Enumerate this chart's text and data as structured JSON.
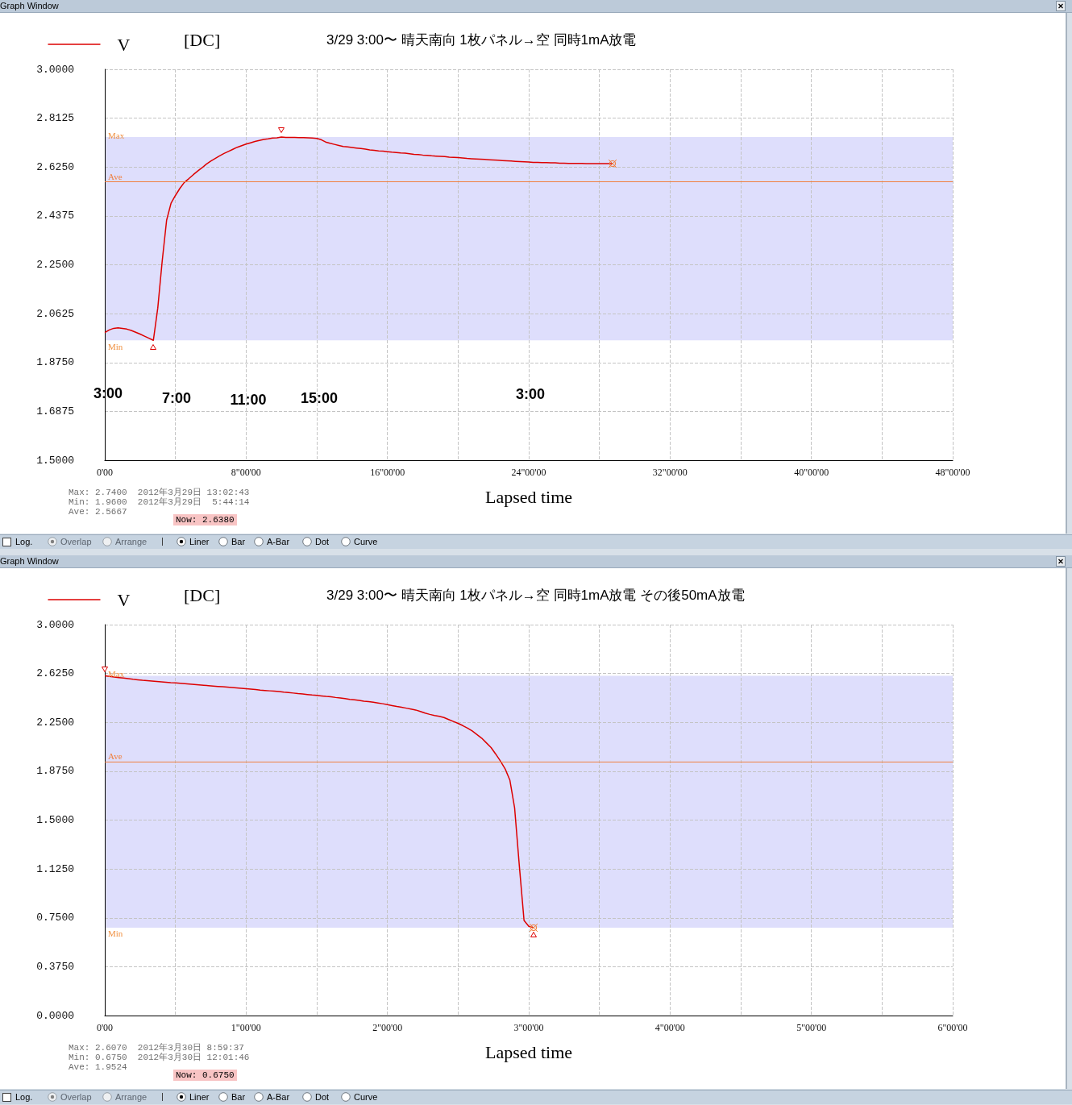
{
  "chart_data": [
    {
      "type": "line",
      "title": "3/29 3:00〜 晴天南向 1枚パネル→空 同時1mA放電",
      "xlabel": "Lapsed time",
      "categories": [
        "0'00",
        null,
        null,
        null,
        null,
        null,
        null,
        null,
        null,
        null,
        null,
        null,
        null,
        null,
        null,
        null,
        null,
        null,
        null,
        null,
        null,
        null,
        null,
        null,
        null,
        null,
        null,
        null,
        null,
        null,
        null,
        null,
        "8\"00'00",
        null,
        null,
        null,
        null,
        null,
        null,
        null,
        null,
        null,
        null,
        null,
        null,
        null,
        null,
        null,
        null,
        null,
        null,
        null,
        null,
        null,
        null,
        null,
        null,
        null,
        null,
        null,
        null,
        null,
        null,
        null,
        "16\"00'00",
        null,
        null,
        null,
        null,
        null,
        null,
        null,
        null,
        null,
        null,
        null,
        null,
        null,
        null,
        null,
        null,
        null,
        null,
        null,
        null,
        null,
        null,
        null,
        null,
        null,
        null,
        null,
        null,
        null,
        null,
        null,
        "24\"00'00",
        null,
        null,
        null,
        null,
        null,
        null,
        null,
        null,
        null,
        null,
        null,
        null,
        null,
        null,
        null,
        null,
        null,
        null,
        null,
        null,
        null,
        null,
        null,
        null,
        null,
        null,
        null,
        null,
        null,
        null,
        null,
        "32\"00'00",
        null,
        null,
        null,
        null,
        null,
        null,
        null,
        null,
        null,
        null,
        null,
        null,
        null,
        null,
        null,
        null,
        null,
        null,
        null,
        null,
        null,
        null,
        null,
        null,
        null,
        null,
        null,
        null,
        null,
        null,
        null,
        "40\"00'00",
        null,
        null,
        null,
        null,
        null,
        null,
        null,
        null,
        null,
        null,
        null,
        null,
        null,
        null,
        null,
        null,
        null,
        null,
        null,
        null,
        null,
        null,
        null,
        null,
        null,
        null,
        null,
        null,
        null,
        null,
        null,
        "48\"00'00"
      ],
      "series": [
        {
          "name": "V",
          "color": "#dd0000",
          "values": [
            1.99,
            2.0,
            2.006,
            2.008,
            2.006,
            2.003,
            1.998,
            1.991,
            1.984,
            1.976,
            1.968,
            1.96,
            2.084,
            2.264,
            2.421,
            2.486,
            2.516,
            2.543,
            2.566,
            2.58,
            2.595,
            2.609,
            2.622,
            2.636,
            2.648,
            2.658,
            2.668,
            2.677,
            2.685,
            2.693,
            2.701,
            2.707,
            2.713,
            2.718,
            2.723,
            2.727,
            2.731,
            2.733,
            2.736,
            2.737,
            2.74,
            2.739,
            2.739,
            2.739,
            2.738,
            2.738,
            2.737,
            2.736,
            2.735,
            2.73,
            2.721,
            2.716,
            2.712,
            2.708,
            2.704,
            2.702,
            2.7,
            2.698,
            2.696,
            2.694,
            2.691,
            2.689,
            2.687,
            2.686,
            2.684,
            2.682,
            2.681,
            2.679,
            2.678,
            2.676,
            2.674,
            2.673,
            2.671,
            2.67,
            2.668,
            2.667,
            2.666,
            2.665,
            2.663,
            2.662,
            2.661,
            2.66,
            2.658,
            2.657,
            2.656,
            2.655,
            2.654,
            2.653,
            2.652,
            2.651,
            2.65,
            2.649,
            2.648,
            2.647,
            2.646,
            2.645,
            2.644,
            2.643,
            2.643,
            2.642,
            2.642,
            2.641,
            2.641,
            2.64,
            2.64,
            2.639,
            2.639,
            2.639,
            2.639,
            2.638,
            2.638,
            2.638,
            2.638,
            2.638,
            2.638,
            2.638,
            null,
            null,
            null,
            null,
            null,
            null,
            null,
            null,
            null,
            null,
            null,
            null,
            null,
            null,
            null,
            null,
            null,
            null,
            null,
            null,
            null,
            null,
            null,
            null,
            null,
            null,
            null,
            null,
            null,
            null,
            null,
            null,
            null,
            null,
            null,
            null,
            null,
            null,
            null,
            null,
            null,
            null,
            null,
            null,
            null,
            null,
            null,
            null,
            null,
            null,
            null,
            null,
            null,
            null,
            null,
            null,
            null,
            null,
            null,
            null,
            null,
            null,
            null,
            null,
            null,
            null,
            null,
            null,
            null,
            null,
            null,
            null,
            null,
            null,
            null,
            null,
            null
          ]
        }
      ],
      "ylim": [
        1.5,
        3.0
      ],
      "yticks": [
        {
          "value": 1.5,
          "label": "1.5000"
        },
        1.6875,
        {
          "value": 1.875,
          "label": "1.8750"
        },
        2.0625,
        {
          "value": 2.25,
          "label": "2.2500"
        },
        2.4375,
        {
          "value": 2.625,
          "label": "2.6250"
        },
        2.8125,
        {
          "value": 3.0,
          "label": "3.0000"
        }
      ],
      "grid": true,
      "legend": "top left",
      "bands": [
        {
          "axis": "y",
          "from": 1.96,
          "to": 2.74,
          "color": "#dedefc"
        }
      ],
      "ref_lines": [
        {
          "axis": "y",
          "value": 2.5667,
          "label": "Ave",
          "color": "#f08040"
        }
      ],
      "annotations": [
        "Graph Window",
        "[DC]",
        "Max: 2.7400  2012年3月29日 13:02:43",
        "Min: 1.9600  2012年3月29日  5:44:14",
        "Ave: 2.5667",
        "Now: 2.6380",
        "Log.",
        "Overlap",
        "Arrange",
        "Liner",
        "Bar",
        "A-Bar",
        "Dot",
        "Curve",
        {
          "text": "Max",
          "y": 2.74
        },
        {
          "text": "Min",
          "y": 1.96
        },
        "3:00",
        "7:00",
        "11:00",
        "15:00",
        "3:00"
      ]
    },
    {
      "type": "line",
      "title": "3/29 3:00〜 晴天南向 1枚パネル→空 同時1mA放電 その後50mA放電",
      "xlabel": "Lapsed time",
      "categories": [
        "0'00",
        null,
        null,
        null,
        null,
        null,
        null,
        null,
        null,
        null,
        null,
        null,
        null,
        null,
        null,
        null,
        null,
        null,
        null,
        null,
        null,
        null,
        null,
        null,
        null,
        null,
        null,
        null,
        null,
        null,
        "1\"00'00",
        null,
        null,
        null,
        null,
        null,
        null,
        null,
        null,
        null,
        null,
        null,
        null,
        null,
        null,
        null,
        null,
        null,
        null,
        null,
        null,
        null,
        null,
        null,
        null,
        null,
        null,
        null,
        null,
        null,
        "2\"00'00",
        null,
        null,
        null,
        null,
        null,
        null,
        null,
        null,
        null,
        null,
        null,
        null,
        null,
        null,
        null,
        null,
        null,
        null,
        null,
        null,
        null,
        null,
        null,
        null,
        null,
        null,
        null,
        null,
        null,
        "3\"00'00",
        null,
        null,
        null,
        null,
        null,
        null,
        null,
        null,
        null,
        null,
        null,
        null,
        null,
        null,
        null,
        null,
        null,
        null,
        null,
        null,
        null,
        null,
        null,
        null,
        null,
        null,
        null,
        null,
        null,
        "4\"00'00",
        null,
        null,
        null,
        null,
        null,
        null,
        null,
        null,
        null,
        null,
        null,
        null,
        null,
        null,
        null,
        null,
        null,
        null,
        null,
        null,
        null,
        null,
        null,
        null,
        null,
        null,
        null,
        null,
        null,
        "5\"00'00",
        null,
        null,
        null,
        null,
        null,
        null,
        null,
        null,
        null,
        null,
        null,
        null,
        null,
        null,
        null,
        null,
        null,
        null,
        null,
        null,
        null,
        null,
        null,
        null,
        null,
        null,
        null,
        null,
        null,
        "6\"00'00"
      ],
      "series": [
        {
          "name": "V",
          "color": "#dd0000",
          "values": [
            2.607,
            2.603,
            2.598,
            2.594,
            2.59,
            2.586,
            2.581,
            2.577,
            2.573,
            2.57,
            2.567,
            2.564,
            2.561,
            2.558,
            2.555,
            2.553,
            2.55,
            2.547,
            2.544,
            2.541,
            2.538,
            2.535,
            2.532,
            2.529,
            2.526,
            2.523,
            2.52,
            2.517,
            2.514,
            2.511,
            2.508,
            2.505,
            2.502,
            2.498,
            2.495,
            2.492,
            2.489,
            2.486,
            2.482,
            2.479,
            2.475,
            2.471,
            2.468,
            2.464,
            2.46,
            2.457,
            2.453,
            2.449,
            2.446,
            2.441,
            2.437,
            2.432,
            2.427,
            2.423,
            2.418,
            2.413,
            2.409,
            2.404,
            2.399,
            2.393,
            2.386,
            2.379,
            2.372,
            2.366,
            2.359,
            2.352,
            2.345,
            2.334,
            2.321,
            2.311,
            2.303,
            2.296,
            2.287,
            2.272,
            2.257,
            2.242,
            2.225,
            2.206,
            2.184,
            2.157,
            2.129,
            2.093,
            2.057,
            2.006,
            1.952,
            1.892,
            1.806,
            1.594,
            1.15,
            0.73,
            0.685,
            0.675,
            null,
            null,
            null,
            null,
            null,
            null,
            null,
            null,
            null,
            null,
            null,
            null,
            null,
            null,
            null,
            null,
            null,
            null,
            null,
            null,
            null,
            null,
            null,
            null,
            null,
            null,
            null,
            null,
            null,
            null,
            null,
            null,
            null,
            null,
            null,
            null,
            null,
            null,
            null,
            null,
            null,
            null,
            null,
            null,
            null,
            null,
            null,
            null,
            null,
            null,
            null,
            null,
            null,
            null,
            null,
            null,
            null,
            null,
            null,
            null,
            null,
            null,
            null,
            null,
            null,
            null,
            null,
            null,
            null,
            null,
            null,
            null,
            null,
            null,
            null,
            null,
            null,
            null,
            null,
            null,
            null,
            null,
            null,
            null,
            null,
            null,
            null,
            null,
            null
          ]
        }
      ],
      "ylim": [
        0,
        3.0
      ],
      "yticks": [
        {
          "value": 0,
          "label": "0.0000"
        },
        {
          "value": 0.375,
          "label": "0.3750"
        },
        {
          "value": 0.75,
          "label": "0.7500"
        },
        {
          "value": 1.125,
          "label": "1.1250"
        },
        {
          "value": 1.5,
          "label": "1.5000"
        },
        {
          "value": 1.875,
          "label": "1.8750"
        },
        {
          "value": 2.25,
          "label": "2.2500"
        },
        {
          "value": 2.625,
          "label": "2.6250"
        },
        {
          "value": 3.0,
          "label": "3.0000"
        }
      ],
      "grid": true,
      "legend": "top left",
      "bands": [
        {
          "axis": "y",
          "from": 0.675,
          "to": 2.607,
          "color": "#dedefc"
        }
      ],
      "ref_lines": [
        {
          "axis": "y",
          "value": 1.9524,
          "label": "Ave",
          "color": "#f08040"
        }
      ],
      "annotations": [
        "Graph Window",
        "[DC]",
        "Max: 2.6070  2012年3月30日 8:59:37",
        "Min: 0.6750  2012年3月30日 12:01:46",
        "Ave: 1.9524",
        "Now: 0.6750",
        "Log.",
        "Overlap",
        "Arrange",
        "Liner",
        "Bar",
        "A-Bar",
        "Dot",
        "Curve",
        {
          "text": "Max",
          "y": 2.607
        },
        {
          "text": "Min",
          "y": 0.675
        }
      ]
    }
  ]
}
